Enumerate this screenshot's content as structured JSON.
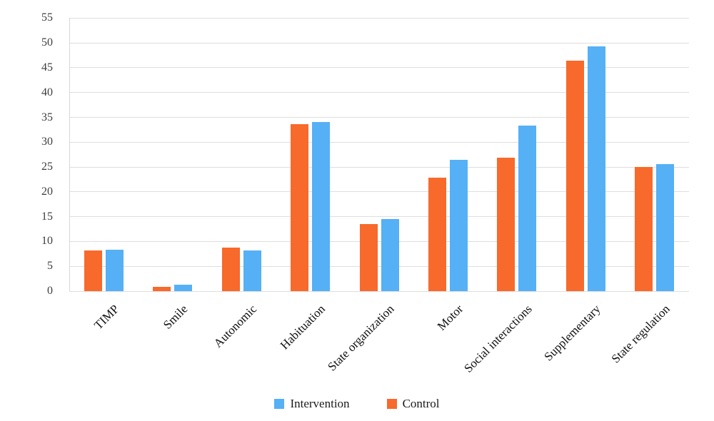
{
  "chart_data": {
    "type": "bar",
    "title": "",
    "xlabel": "",
    "ylabel": "",
    "categories": [
      "TIMP",
      "Smile",
      "Autonomic",
      "Habituation",
      "State organization",
      "Motor",
      "Social interactions",
      "Supplementary",
      "State regulation"
    ],
    "series": [
      {
        "name": "Control",
        "color": "#F8692C",
        "values": [
          8.2,
          0.9,
          8.8,
          33.6,
          13.5,
          22.8,
          26.9,
          46.5,
          25.0
        ]
      },
      {
        "name": "Intervention",
        "color": "#55B0F5",
        "values": [
          8.4,
          1.3,
          8.2,
          34.1,
          14.5,
          26.5,
          33.4,
          49.3,
          25.6
        ]
      }
    ],
    "ylim": [
      0,
      55
    ],
    "yticks": [
      0,
      5,
      10,
      15,
      20,
      25,
      30,
      35,
      40,
      45,
      50,
      55
    ],
    "grid": true,
    "gridline_color": "#dedede",
    "legend": {
      "position": "bottom",
      "items": [
        {
          "label": "Intervention",
          "color": "#55B0F5"
        },
        {
          "label": "Control",
          "color": "#F8692C"
        }
      ]
    }
  }
}
